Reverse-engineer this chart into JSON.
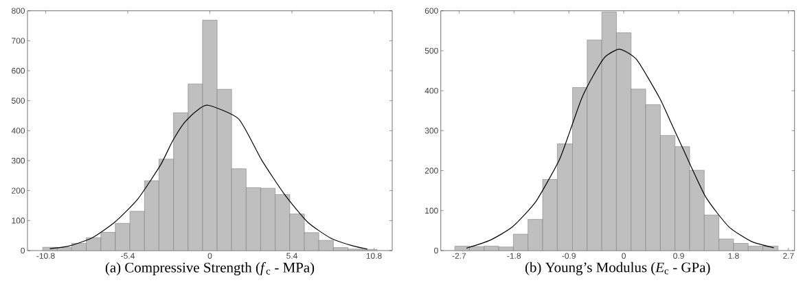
{
  "chart_data": [
    {
      "type": "histogram",
      "xlabel": "(a) Compressive Strength (*f*$_{c}$ - MPa)",
      "bins": [
        -11,
        -10.04,
        -9.09,
        -8.13,
        -7.17,
        -6.22,
        -5.26,
        -4.3,
        -3.35,
        -2.39,
        -1.43,
        -0.48,
        0.48,
        1.43,
        2.39,
        3.35,
        4.3,
        5.26,
        6.22,
        7.17,
        8.13,
        9.09,
        10.04,
        11
      ],
      "series": [
        {
          "color": "#bfbfbf",
          "values": [
            11,
            10,
            24,
            43,
            61,
            91,
            131,
            233,
            305,
            460,
            556,
            769,
            538,
            273,
            210,
            208,
            187,
            122,
            60,
            34,
            10,
            5,
            4
          ]
        },
        {
          "type": "line",
          "color": "#000000",
          "x": [
            -10.53,
            -9.27,
            -7.77,
            -6.25,
            -4.74,
            -3.24,
            -2.48,
            -1.72,
            -0.97,
            -0.14,
            1.9,
            3.41,
            4.92,
            6.43,
            7.94,
            9.45,
            10.36
          ],
          "values": [
            6,
            15,
            42,
            95,
            172,
            286,
            363,
            424,
            462,
            485,
            439,
            302,
            187,
            95,
            42,
            15,
            5
          ]
        }
      ],
      "xlim": [
        -12,
        12
      ],
      "ylim": [
        0,
        800
      ],
      "xticks": [
        -10.8,
        -5.4,
        0,
        5.4,
        10.8
      ],
      "yticks": [
        0,
        100,
        200,
        300,
        400,
        500,
        600,
        700,
        800
      ]
    },
    {
      "type": "histogram",
      "xlabel": "(b) Young’s Modulus (*E*$_{c}$ - GPa)",
      "bins": [
        -2.77,
        -2.53,
        -2.29,
        -2.05,
        -1.81,
        -1.57,
        -1.33,
        -1.09,
        -0.84,
        -0.6,
        -0.36,
        -0.12,
        0.12,
        0.36,
        0.6,
        0.84,
        1.08,
        1.32,
        1.56,
        1.8,
        2.04,
        2.28,
        2.53
      ],
      "series": [
        {
          "color": "#bfbfbf",
          "values": [
            11,
            10,
            11,
            9,
            41,
            78,
            178,
            267,
            408,
            527,
            597,
            545,
            404,
            365,
            288,
            260,
            201,
            89,
            29,
            18,
            11,
            11
          ]
        },
        {
          "type": "line",
          "color": "#000000",
          "x": [
            -2.58,
            -2.19,
            -1.82,
            -1.44,
            -1.06,
            -0.88,
            -0.69,
            -0.5,
            -0.31,
            -0.07,
            0.21,
            0.59,
            0.78,
            0.97,
            1.34,
            1.72,
            2.09,
            2.46
          ],
          "values": [
            6,
            26,
            60,
            123,
            226,
            300,
            381,
            438,
            484,
            504,
            478,
            381,
            318,
            255,
            135,
            60,
            23,
            7
          ]
        }
      ],
      "xlim": [
        -3,
        2.8
      ],
      "ylim": [
        0,
        600
      ],
      "xticks": [
        -2.7,
        -1.8,
        -0.9,
        0,
        0.9,
        1.8,
        2.7
      ],
      "yticks": [
        0,
        100,
        200,
        300,
        400,
        500,
        600
      ]
    }
  ]
}
